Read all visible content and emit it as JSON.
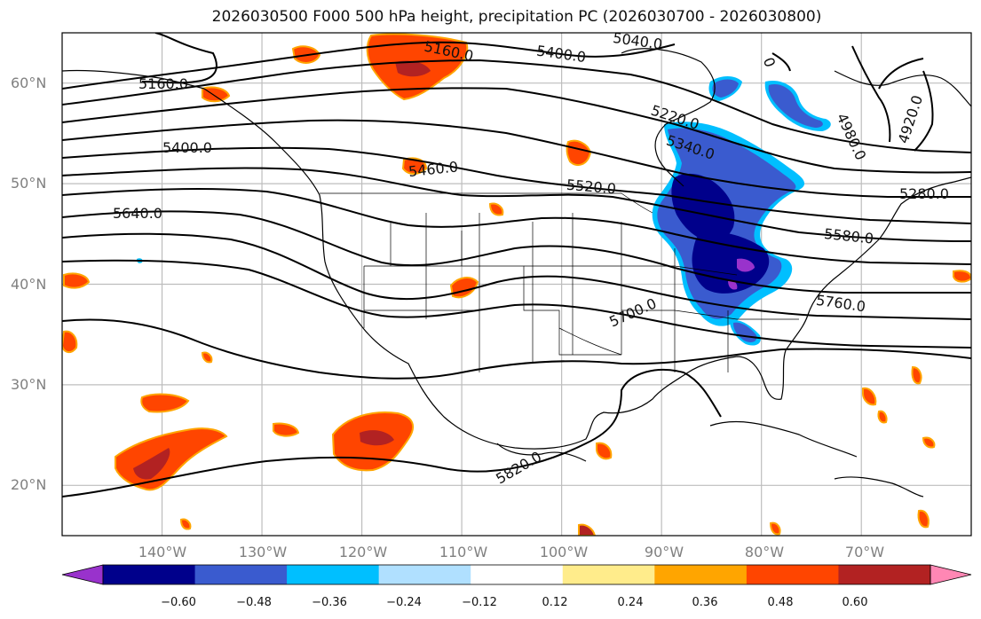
{
  "title": "2026030500 F000 500 hPa height, precipitation PC (2026030700 - 2026030800)",
  "map": {
    "lon_range": [
      -150,
      -59
    ],
    "lat_range": [
      15,
      65
    ],
    "lat_labels": [
      "20°N",
      "30°N",
      "40°N",
      "50°N",
      "60°N"
    ],
    "lon_labels": [
      "140°W",
      "130°W",
      "120°W",
      "110°W",
      "100°W",
      "90°W",
      "80°W",
      "70°W"
    ],
    "gridlines": true
  },
  "contour_labels": [
    "5160.0",
    "5160.0",
    "5400.0",
    "5040.0",
    "5400.0",
    "5460.0",
    "5520.0",
    "5640.0",
    "5220.0",
    "5340.0",
    "4920.0",
    "4980.0",
    "5280.0",
    "5580.0",
    "5700.0",
    "5760.0",
    "5820.0",
    "0"
  ],
  "colorbar": {
    "ticks": [
      "−0.60",
      "−0.48",
      "−0.36",
      "−0.24",
      "−0.12",
      "0.12",
      "0.24",
      "0.36",
      "0.48",
      "0.60"
    ],
    "colors": [
      "#9932cc",
      "#00008b",
      "#3a5bcf",
      "#00bfff",
      "#b0e0ff",
      "#ffffff",
      "#ffec8b",
      "#ffa500",
      "#ff4500",
      "#b22222",
      "#ff87b4"
    ]
  }
}
